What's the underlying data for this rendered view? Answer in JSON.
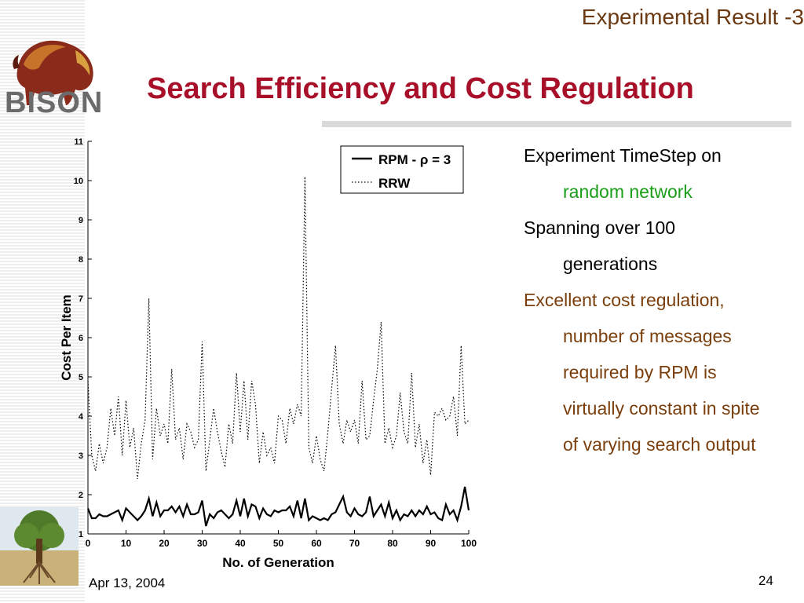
{
  "header": {
    "section": "Experimental Result -3",
    "title": "Search Efficiency and Cost Regulation"
  },
  "logo": {
    "text": "BISON"
  },
  "bullets": [
    {
      "text": "Experiment TimeStep on",
      "level": 0,
      "color": "#000000"
    },
    {
      "text": "random network",
      "level": 1,
      "color": "#1a9e1a"
    },
    {
      "text": "Spanning over 100",
      "level": 0,
      "color": "#000000"
    },
    {
      "text": "generations",
      "level": 1,
      "color": "#000000"
    },
    {
      "text": "Excellent cost regulation,",
      "level": 0,
      "color": "#7a3f0c"
    },
    {
      "text": "number of messages",
      "level": 1,
      "color": "#7a3f0c"
    },
    {
      "text": "required by RPM is",
      "level": 1,
      "color": "#7a3f0c"
    },
    {
      "text": "virtually constant in spite",
      "level": 1,
      "color": "#7a3f0c"
    },
    {
      "text": "of varying search output",
      "level": 1,
      "color": "#7a3f0c"
    }
  ],
  "footer": {
    "date": "Apr 13, 2004",
    "page": "24"
  },
  "colors": {
    "title": "#a8102a",
    "section": "#6b3a13",
    "green": "#1a9e1a",
    "brown": "#7a3f0c"
  },
  "chart_data": {
    "type": "line",
    "xlabel": "No. of Generation",
    "ylabel": "Cost Per Item",
    "xlim": [
      0,
      100
    ],
    "ylim": [
      1,
      11
    ],
    "x_ticks": [
      0,
      10,
      20,
      30,
      40,
      50,
      60,
      70,
      80,
      90,
      100
    ],
    "y_ticks": [
      1,
      2,
      3,
      4,
      5,
      6,
      7,
      8,
      9,
      10,
      11
    ],
    "legend_position": "top-right",
    "series": [
      {
        "name": "RPM - ρ = 3",
        "style": "solid",
        "x": [
          0,
          1,
          2,
          3,
          4,
          5,
          6,
          7,
          8,
          9,
          10,
          11,
          12,
          13,
          14,
          15,
          16,
          17,
          18,
          19,
          20,
          21,
          22,
          23,
          24,
          25,
          26,
          27,
          28,
          29,
          30,
          31,
          32,
          33,
          34,
          35,
          36,
          37,
          38,
          39,
          40,
          41,
          42,
          43,
          44,
          45,
          46,
          47,
          48,
          49,
          50,
          51,
          52,
          53,
          54,
          55,
          56,
          57,
          58,
          59,
          60,
          61,
          62,
          63,
          64,
          65,
          66,
          67,
          68,
          69,
          70,
          71,
          72,
          73,
          74,
          75,
          76,
          77,
          78,
          79,
          80,
          81,
          82,
          83,
          84,
          85,
          86,
          87,
          88,
          89,
          90,
          91,
          92,
          93,
          94,
          95,
          96,
          97,
          98,
          99,
          100
        ],
        "values": [
          1.65,
          1.4,
          1.4,
          1.5,
          1.45,
          1.45,
          1.5,
          1.55,
          1.6,
          1.35,
          1.65,
          1.55,
          1.45,
          1.35,
          1.45,
          1.6,
          1.9,
          1.45,
          1.8,
          1.45,
          1.6,
          1.6,
          1.7,
          1.55,
          1.7,
          1.45,
          1.75,
          1.5,
          1.5,
          1.55,
          1.85,
          1.2,
          1.5,
          1.4,
          1.55,
          1.6,
          1.5,
          1.4,
          1.5,
          1.85,
          1.45,
          1.9,
          1.45,
          1.75,
          1.7,
          1.4,
          1.65,
          1.5,
          1.45,
          1.6,
          1.55,
          1.6,
          1.6,
          1.7,
          1.45,
          1.85,
          1.4,
          1.9,
          1.35,
          1.45,
          1.4,
          1.35,
          1.4,
          1.35,
          1.5,
          1.55,
          1.75,
          1.95,
          1.55,
          1.45,
          1.65,
          1.5,
          1.45,
          1.55,
          1.95,
          1.45,
          1.6,
          1.75,
          1.45,
          1.8,
          1.4,
          1.6,
          1.35,
          1.5,
          1.45,
          1.6,
          1.45,
          1.6,
          1.5,
          1.7,
          1.5,
          1.55,
          1.4,
          1.35,
          1.75,
          1.5,
          1.6,
          1.35,
          1.7,
          2.2,
          1.6
        ]
      },
      {
        "name": "RRW",
        "style": "dotted",
        "x": [
          0,
          1,
          2,
          3,
          4,
          5,
          6,
          7,
          8,
          9,
          10,
          11,
          12,
          13,
          14,
          15,
          16,
          17,
          18,
          19,
          20,
          21,
          22,
          23,
          24,
          25,
          26,
          27,
          28,
          29,
          30,
          31,
          32,
          33,
          34,
          35,
          36,
          37,
          38,
          39,
          40,
          41,
          42,
          43,
          44,
          45,
          46,
          47,
          48,
          49,
          50,
          51,
          52,
          53,
          54,
          55,
          56,
          57,
          58,
          59,
          60,
          61,
          62,
          63,
          64,
          65,
          66,
          67,
          68,
          69,
          70,
          71,
          72,
          73,
          74,
          75,
          76,
          77,
          78,
          79,
          80,
          81,
          82,
          83,
          84,
          85,
          86,
          87,
          88,
          89,
          90,
          91,
          92,
          93,
          94,
          95,
          96,
          97,
          98,
          99,
          100
        ],
        "values": [
          4.9,
          3.0,
          2.6,
          3.3,
          2.8,
          3.2,
          4.2,
          3.5,
          4.5,
          3.0,
          4.4,
          3.2,
          3.7,
          2.4,
          3.3,
          3.9,
          7.0,
          2.9,
          4.2,
          3.5,
          3.8,
          3.3,
          5.2,
          3.4,
          3.7,
          2.9,
          3.8,
          3.6,
          3.2,
          3.4,
          5.9,
          2.6,
          3.4,
          4.2,
          3.6,
          3.1,
          2.7,
          3.8,
          3.3,
          5.1,
          3.6,
          4.9,
          3.4,
          4.9,
          4.3,
          2.8,
          3.6,
          3.0,
          3.2,
          2.8,
          4.0,
          3.9,
          3.3,
          4.2,
          3.8,
          4.3,
          4.0,
          10.1,
          3.2,
          2.8,
          3.5,
          2.9,
          2.6,
          3.6,
          4.7,
          5.8,
          3.8,
          3.3,
          3.9,
          3.6,
          3.9,
          3.3,
          4.9,
          3.4,
          3.5,
          4.4,
          5.2,
          6.4,
          3.3,
          3.7,
          3.2,
          3.5,
          4.6,
          3.6,
          3.3,
          5.1,
          3.2,
          3.8,
          2.8,
          3.4,
          2.5,
          4.1,
          4.0,
          4.2,
          3.9,
          4.0,
          4.5,
          3.5,
          5.8,
          3.8,
          3.9
        ]
      }
    ]
  }
}
